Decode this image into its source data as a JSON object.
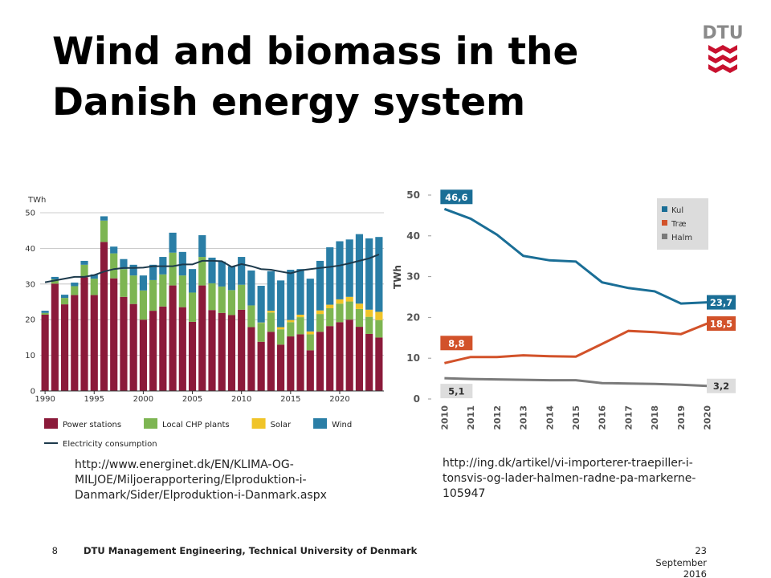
{
  "title_lines": [
    "Wind and biomass in the",
    "Danish energy system"
  ],
  "logo": {
    "text": "DTU"
  },
  "sources": [
    [
      "http://www.energinet.dk/EN/KLIMA-OG-",
      "MILJOE/Miljoerapportering/Elproduktion-i-",
      "Danmark/Sider/Elproduktion-i-Danmark.aspx"
    ],
    [
      "http://ing.dk/artikel/vi-importerer-traepiller-i-",
      "tonsvis-og-lader-halmen-radne-pa-markerne-",
      "105947"
    ]
  ],
  "footer": {
    "page": "8",
    "organisation": "DTU Management Engineering, Technical University of Denmark",
    "date_lines": [
      "23",
      "September",
      "2016"
    ]
  },
  "chart_data": [
    {
      "type": "bar",
      "stacked": true,
      "y_unit": "TWh",
      "x": [
        1990,
        1991,
        1992,
        1993,
        1994,
        1995,
        1996,
        1997,
        1998,
        1999,
        2000,
        2001,
        2002,
        2003,
        2004,
        2005,
        2006,
        2007,
        2008,
        2009,
        2010,
        2011,
        2012,
        2013,
        2014,
        2015,
        2016,
        2017,
        2018,
        2019,
        2020,
        2021,
        2022,
        2023,
        2024
      ],
      "xlim": [
        1989.5,
        2024.5
      ],
      "xticks": [
        1990,
        1995,
        2000,
        2005,
        2010,
        2015,
        2020
      ],
      "ylim": [
        0,
        50
      ],
      "yticks": [
        0,
        10,
        20,
        30,
        40,
        50
      ],
      "grid": true,
      "legend": "bottom",
      "series": [
        {
          "name": "Power stations",
          "color": "#8b1a3a",
          "values": [
            21.4,
            30.1,
            24.3,
            26.9,
            31.9,
            26.9,
            41.8,
            31.6,
            26.4,
            24.4,
            20.0,
            22.5,
            23.7,
            29.6,
            23.5,
            19.4,
            29.6,
            22.7,
            21.9,
            21.3,
            22.8,
            17.9,
            13.8,
            16.6,
            13.0,
            15.3,
            15.9,
            11.4,
            16.6,
            18.2,
            19.3,
            20.0,
            18.0,
            16.0,
            15.0
          ]
        },
        {
          "name": "Local CHP plants",
          "color": "#7db552",
          "values": [
            0.5,
            1.2,
            1.8,
            2.5,
            3.5,
            4.6,
            6.0,
            7.0,
            7.8,
            8.0,
            8.2,
            8.6,
            9.0,
            9.2,
            8.9,
            8.2,
            8.0,
            7.5,
            7.4,
            7.0,
            7.0,
            6.1,
            5.3,
            5.4,
            4.3,
            4.0,
            4.8,
            4.5,
            5.0,
            5.0,
            5.2,
            5.1,
            5.0,
            4.8,
            4.9
          ]
        },
        {
          "name": "Solar",
          "color": "#f0c428",
          "values": [
            0,
            0,
            0,
            0,
            0,
            0,
            0,
            0,
            0,
            0,
            0,
            0,
            0,
            0,
            0,
            0,
            0,
            0,
            0,
            0,
            0,
            0,
            0.1,
            0.5,
            0.6,
            0.6,
            0.7,
            0.8,
            1.0,
            1.0,
            1.2,
            1.3,
            1.5,
            2.0,
            2.3
          ]
        },
        {
          "name": "Wind",
          "color": "#2a7ea6",
          "values": [
            0.6,
            0.7,
            0.9,
            1.0,
            1.1,
            1.2,
            1.2,
            1.9,
            2.8,
            3.0,
            4.2,
            4.3,
            4.9,
            5.6,
            6.6,
            6.6,
            6.1,
            7.2,
            7.0,
            6.7,
            7.8,
            9.8,
            10.3,
            11.1,
            13.1,
            14.1,
            12.8,
            14.8,
            13.9,
            16.1,
            16.3,
            16.1,
            19.5,
            20.0,
            21.0
          ]
        },
        {
          "name": "Electricity consumption",
          "type": "line",
          "color": "#1d3a4c",
          "values": [
            30.5,
            31,
            31.5,
            32,
            32,
            32.5,
            33.5,
            34.2,
            34.5,
            34.5,
            34.6,
            35,
            35,
            35,
            35.5,
            35.5,
            36.5,
            36.5,
            36.4,
            34.8,
            35.6,
            35,
            34.2,
            34,
            33.5,
            33,
            33.8,
            34.2,
            34.5,
            34.8,
            35.2,
            35.8,
            36.5,
            37.2,
            38.3
          ]
        }
      ]
    },
    {
      "type": "line",
      "y_label": "TWh",
      "x": [
        2010,
        2011,
        2012,
        2013,
        2014,
        2015,
        2016,
        2017,
        2018,
        2019,
        2020
      ],
      "xlim": [
        2009.5,
        2020.5
      ],
      "xticks": [
        2010,
        2011,
        2012,
        2013,
        2014,
        2015,
        2016,
        2017,
        2018,
        2019,
        2020
      ],
      "ylim": [
        0,
        50
      ],
      "yticks": [
        0,
        10,
        20,
        30,
        40,
        50
      ],
      "legend": "top-right",
      "series": [
        {
          "name": "Kul",
          "color": "#1a6e96",
          "values": [
            46.6,
            44.2,
            40.3,
            35.1,
            34.0,
            33.7,
            28.6,
            27.2,
            26.4,
            23.4,
            23.7
          ],
          "value_labels": [
            "46,6",
            null,
            null,
            null,
            null,
            null,
            null,
            null,
            null,
            null,
            "23,7"
          ]
        },
        {
          "name": "Træ",
          "color": "#d2522a",
          "values": [
            8.8,
            10.3,
            10.3,
            10.7,
            10.5,
            10.4,
            13.5,
            16.7,
            16.4,
            15.9,
            18.5
          ],
          "value_labels": [
            "8,8",
            null,
            null,
            null,
            null,
            null,
            null,
            null,
            null,
            null,
            "18,5"
          ]
        },
        {
          "name": "Halm",
          "color": "#7a7a7a",
          "values": [
            5.1,
            4.9,
            4.8,
            4.7,
            4.6,
            4.6,
            3.9,
            3.8,
            3.7,
            3.5,
            3.2
          ],
          "value_labels": [
            "5,1",
            null,
            null,
            null,
            null,
            null,
            null,
            null,
            null,
            null,
            "3,2"
          ]
        }
      ]
    }
  ]
}
